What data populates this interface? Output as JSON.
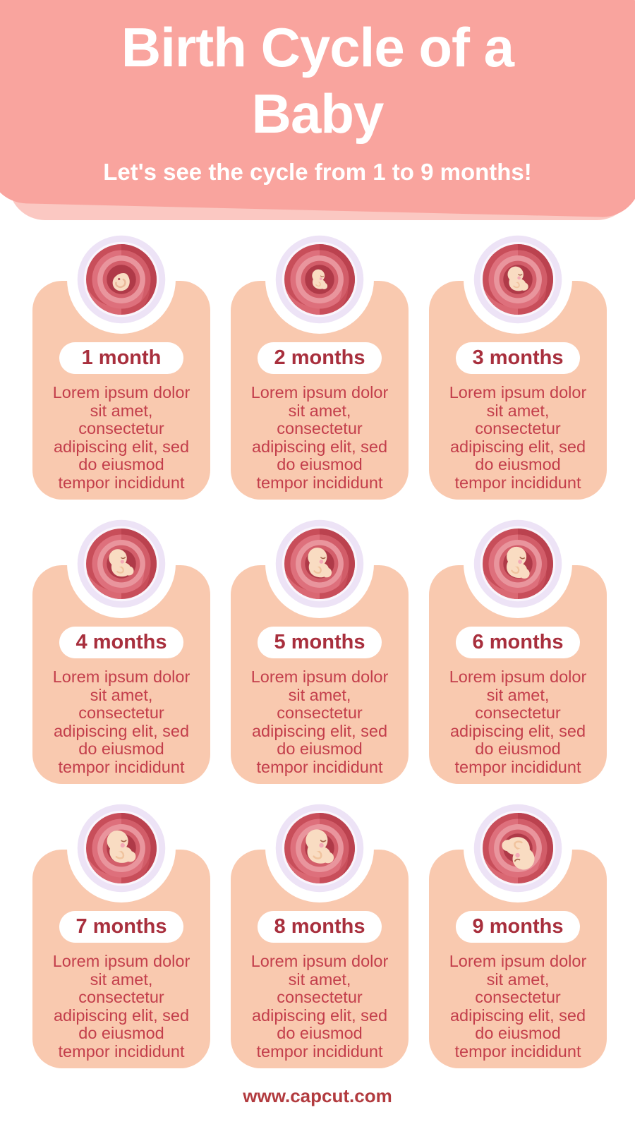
{
  "header": {
    "title_lines": [
      "Birth Cycle of a",
      "Baby"
    ],
    "subtitle": "Let's see the cycle from 1 to 9 months!",
    "bg_color": "#F9A49E",
    "underlay_color": "#FBC8C2",
    "text_color": "#FFFFFF"
  },
  "cards": {
    "bg_color": "#F9C9AF",
    "label_color": "#A82F3D",
    "body_color": "#C33E4B",
    "ring_color": "#EDE3F6",
    "womb_color": "#C84E5A"
  },
  "months": [
    {
      "label": "1 month",
      "illustration": "embryo-in-womb-icon",
      "body_lines": [
        "Lorem ipsum dolor",
        "sit amet,",
        "consectetur",
        "adipiscing elit, sed",
        "do eiusmod",
        "tempor incididunt"
      ]
    },
    {
      "label": "2 months",
      "illustration": "fetus-in-womb-icon",
      "body_lines": [
        "Lorem ipsum dolor",
        "sit amet,",
        "consectetur",
        "adipiscing elit, sed",
        "do eiusmod",
        "tempor incididunt"
      ]
    },
    {
      "label": "3 months",
      "illustration": "fetus-in-womb-icon",
      "body_lines": [
        "Lorem ipsum dolor",
        "sit amet,",
        "consectetur",
        "adipiscing elit, sed",
        "do eiusmod",
        "tempor incididunt"
      ]
    },
    {
      "label": "4 months",
      "illustration": "fetus-in-womb-icon",
      "body_lines": [
        "Lorem ipsum dolor",
        "sit amet,",
        "consectetur",
        "adipiscing elit, sed",
        "do eiusmod",
        "tempor incididunt"
      ]
    },
    {
      "label": "5 months",
      "illustration": "fetus-in-womb-icon",
      "body_lines": [
        "Lorem ipsum dolor",
        "sit amet,",
        "consectetur",
        "adipiscing elit, sed",
        "do eiusmod",
        "tempor incididunt"
      ]
    },
    {
      "label": "6 months",
      "illustration": "fetus-in-womb-icon",
      "body_lines": [
        "Lorem ipsum dolor",
        "sit amet,",
        "consectetur",
        "adipiscing elit, sed",
        "do eiusmod",
        "tempor incididunt"
      ]
    },
    {
      "label": "7 months",
      "illustration": "fetus-in-womb-icon",
      "body_lines": [
        "Lorem ipsum dolor",
        "sit amet,",
        "consectetur",
        "adipiscing elit, sed",
        "do eiusmod",
        "tempor incididunt"
      ]
    },
    {
      "label": "8 months",
      "illustration": "fetus-in-womb-icon",
      "body_lines": [
        "Lorem ipsum dolor",
        "sit amet,",
        "consectetur",
        "adipiscing elit, sed",
        "do eiusmod",
        "tempor incididunt"
      ]
    },
    {
      "label": "9 months",
      "illustration": "fetus-in-womb-head-down-icon",
      "body_lines": [
        "Lorem ipsum dolor",
        "sit amet,",
        "consectetur",
        "adipiscing elit, sed",
        "do eiusmod",
        "tempor incididunt"
      ]
    }
  ],
  "footer": {
    "website": "www.capcut.com"
  }
}
